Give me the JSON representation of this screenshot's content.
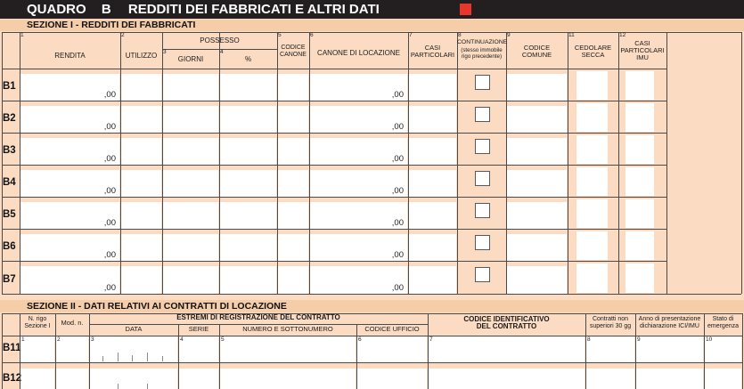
{
  "title_bar": {
    "quadro": "QUADRO",
    "letter": "B",
    "title": "REDDITI DEI FABBRICATI E ALTRI DATI"
  },
  "section1": {
    "title": "SEZIONE I - REDDITI DEI FABBRICATI",
    "possesso_label": "POSSESSO",
    "columns": [
      {
        "num": "1",
        "lines": [
          "RENDITA"
        ]
      },
      {
        "num": "2",
        "lines": [
          "UTILIZZO"
        ]
      },
      {
        "num": "3",
        "lines": [
          "GIORNI"
        ]
      },
      {
        "num": "4",
        "lines": [
          "%"
        ]
      },
      {
        "num": "5",
        "lines": [
          "CODICE",
          "CANONE"
        ]
      },
      {
        "num": "6",
        "lines": [
          "CANONE DI LOCAZIONE"
        ]
      },
      {
        "num": "7",
        "lines": [
          "CASI",
          "PARTICOLARI"
        ]
      },
      {
        "num": "8",
        "lines": [
          "CONTINUAZIONE"
        ],
        "note": [
          "(stesso immobile",
          "rigo precedente)"
        ]
      },
      {
        "num": "9",
        "lines": [
          "CODICE",
          "COMUNE"
        ]
      },
      {
        "num": "11",
        "lines": [
          "CEDOLARE",
          "SECCA"
        ]
      },
      {
        "num": "12",
        "lines": [
          "CASI",
          "PARTICOLARI",
          "IMU"
        ]
      }
    ],
    "rows": [
      {
        "label": "B1",
        "rendita": ",00",
        "canone": ",00"
      },
      {
        "label": "B2",
        "rendita": ",00",
        "canone": ",00"
      },
      {
        "label": "B3",
        "rendita": ",00",
        "canone": ",00"
      },
      {
        "label": "B4",
        "rendita": ",00",
        "canone": ",00"
      },
      {
        "label": "B5",
        "rendita": ",00",
        "canone": ",00"
      },
      {
        "label": "B6",
        "rendita": ",00",
        "canone": ",00"
      },
      {
        "label": "B7",
        "rendita": ",00",
        "canone": ",00"
      }
    ]
  },
  "section2": {
    "title": "SEZIONE II - DATI RELATIVI AI CONTRATTI DI LOCAZIONE",
    "estremi_group": "ESTREMI DI REGISTRAZIONE DEL CONTRATTO",
    "columns": [
      {
        "num": "1",
        "lines": [
          "N. rigo",
          "Sezione I"
        ]
      },
      {
        "num": "2",
        "lines": [
          "Mod. n."
        ]
      },
      {
        "num": "3",
        "lines": [
          "DATA"
        ]
      },
      {
        "num": "4",
        "lines": [
          "SERIE"
        ]
      },
      {
        "num": "5",
        "lines": [
          "NUMERO E SOTTONUMERO"
        ]
      },
      {
        "num": "6",
        "lines": [
          "CODICE UFFICIO"
        ]
      },
      {
        "num": "7",
        "lines": [
          "CODICE IDENTIFICATIVO",
          "DEL CONTRATTO"
        ]
      },
      {
        "num": "8",
        "lines": [
          "Contratti non",
          "superiori 30 gg"
        ]
      },
      {
        "num": "9",
        "lines": [
          "Anno di presentazione",
          "dichiarazione ICI/IMU"
        ]
      },
      {
        "num": "10",
        "lines": [
          "Stato di",
          "emergenza"
        ]
      }
    ],
    "rows": [
      {
        "label": "B11"
      },
      {
        "label": "B12"
      }
    ]
  },
  "colors": {
    "bar_black": "#231f20",
    "page_peach": "#fbdcc3",
    "band_orange": "#f6cda9",
    "grid_line": "#4a4a4a",
    "marker_red": "#e8362d",
    "cell_white": "#ffffff"
  }
}
